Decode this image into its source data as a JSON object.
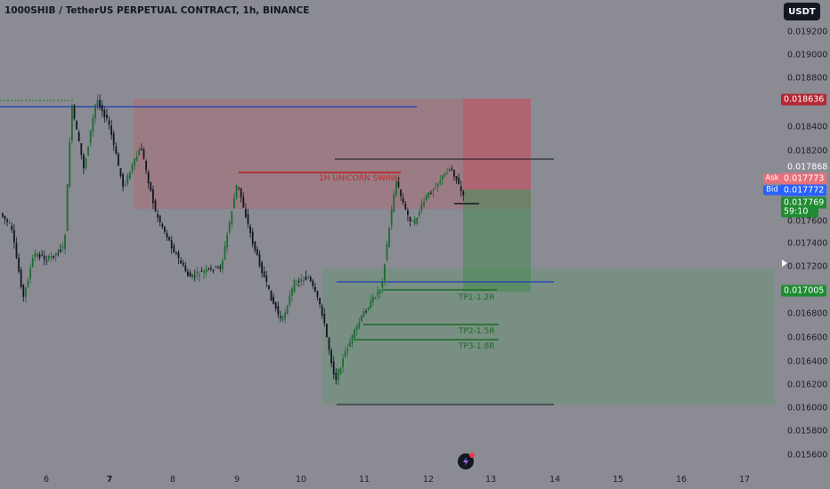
{
  "header": {
    "symbol_title": "1000SHIB / TetherUS PERPETUAL CONTRACT, 1h, BINANCE"
  },
  "currency_button": {
    "label": "USDT"
  },
  "price_axis": {
    "ticks": [
      "0.019200",
      "0.019000",
      "0.018800",
      "0.018400",
      "0.018200",
      "0.017600",
      "0.017400",
      "0.017200",
      "0.016800",
      "0.016600",
      "0.016400",
      "0.016200",
      "0.016000",
      "0.015800",
      "0.015600"
    ]
  },
  "time_axis": {
    "ticks": [
      "6",
      "7",
      "8",
      "9",
      "10",
      "11",
      "12",
      "13",
      "14",
      "15",
      "16",
      "17"
    ],
    "bold_ticks": [
      "7"
    ]
  },
  "price_labels": {
    "stop_level": {
      "value": "0.018636",
      "color": "#b22833"
    },
    "swing_high": {
      "value": "0.017868"
    },
    "ask": {
      "tag": "Ask",
      "value": "0.017773",
      "color": "#e8707b"
    },
    "bid": {
      "tag": "Bid",
      "value": "0.017772",
      "color": "#2962ff"
    },
    "last": {
      "value": "0.017769",
      "countdown": "59:10",
      "color": "#1f8c32"
    },
    "target_level": {
      "value": "0.017005",
      "color": "#1f8c32"
    }
  },
  "annotations": {
    "unicorn_label": {
      "text": "1H UNICORN SWING",
      "color": "#c62828"
    },
    "tp1": {
      "text": "TP1-1.2R",
      "color": "#1b6b24"
    },
    "tp2": {
      "text": "TP2-1.5R",
      "color": "#1b6b24"
    },
    "tp3": {
      "text": "TP3-1.8R",
      "color": "#1b6b24"
    }
  },
  "colors": {
    "background": "#8a8b93",
    "bull_candle": "#1f6b34",
    "bear_candle": "#131722",
    "risk_zone": "#d05060",
    "reward_zone": "#3d8c4a",
    "blue_level": "#1b3fb8"
  },
  "icons": {
    "logo": "tradingview-logo-icon",
    "scroll": "scroll-right-arrow-icon"
  }
}
